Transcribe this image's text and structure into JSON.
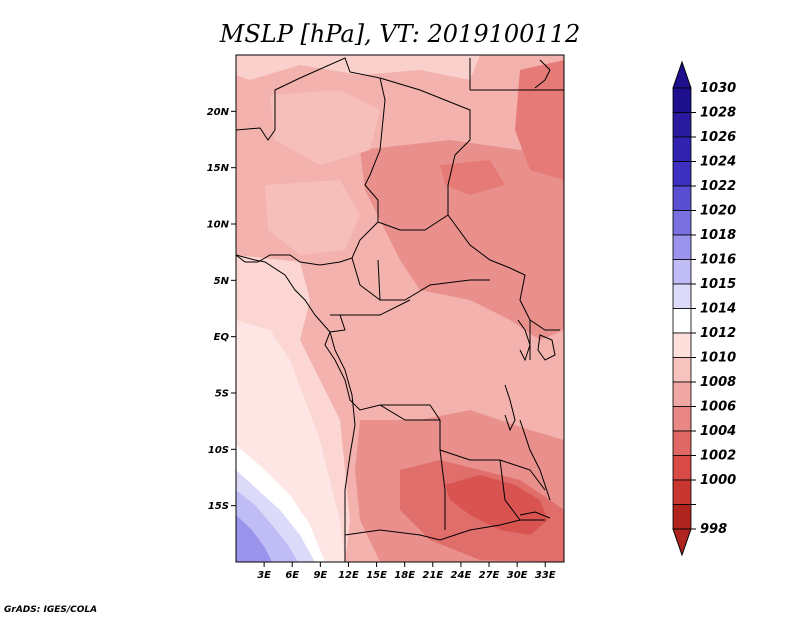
{
  "title": "MSLP [hPa], VT: 2019100112",
  "credit": "GrADS: IGES/COLA",
  "map": {
    "lon_range": [
      0,
      35
    ],
    "lat_range": [
      -20,
      25
    ],
    "lat_ticks": [
      {
        "value": 20,
        "label": "20N"
      },
      {
        "value": 15,
        "label": "15N"
      },
      {
        "value": 10,
        "label": "10N"
      },
      {
        "value": 5,
        "label": "5N"
      },
      {
        "value": 0,
        "label": "EQ"
      },
      {
        "value": -5,
        "label": "5S"
      },
      {
        "value": -10,
        "label": "10S"
      },
      {
        "value": -15,
        "label": "15S"
      }
    ],
    "lon_ticks": [
      {
        "value": 3,
        "label": "3E"
      },
      {
        "value": 6,
        "label": "6E"
      },
      {
        "value": 9,
        "label": "9E"
      },
      {
        "value": 12,
        "label": "12E"
      },
      {
        "value": 15,
        "label": "15E"
      },
      {
        "value": 18,
        "label": "18E"
      },
      {
        "value": 21,
        "label": "21E"
      },
      {
        "value": 24,
        "label": "24E"
      },
      {
        "value": 27,
        "label": "27E"
      },
      {
        "value": 30,
        "label": "30E"
      },
      {
        "value": 33,
        "label": "33E"
      }
    ]
  },
  "colorbar": {
    "levels": [
      {
        "label": "1030",
        "color": "#1e0f8c"
      },
      {
        "label": "1028",
        "color": "#2a1aa0"
      },
      {
        "label": "1026",
        "color": "#3222b0"
      },
      {
        "label": "1024",
        "color": "#3d30c0"
      },
      {
        "label": "1022",
        "color": "#5a4fd2"
      },
      {
        "label": "1020",
        "color": "#7a70e0"
      },
      {
        "label": "1018",
        "color": "#9c94ec"
      },
      {
        "label": "1016",
        "color": "#c0bcf5"
      },
      {
        "label": "1015",
        "color": "#dcdaf9"
      },
      {
        "label": "1014",
        "color": "#ffffff"
      },
      {
        "label": "1012",
        "color": "#fde0dc"
      },
      {
        "label": "1010",
        "color": "#f7c3bf"
      },
      {
        "label": "1008",
        "color": "#f0a6a2"
      },
      {
        "label": "1006",
        "color": "#e88783"
      },
      {
        "label": "1004",
        "color": "#e06864"
      },
      {
        "label": "1002",
        "color": "#d84a46"
      },
      {
        "label": "1000",
        "color": "#c83632"
      },
      {
        "label": "998",
        "color": "#b02420"
      }
    ]
  }
}
